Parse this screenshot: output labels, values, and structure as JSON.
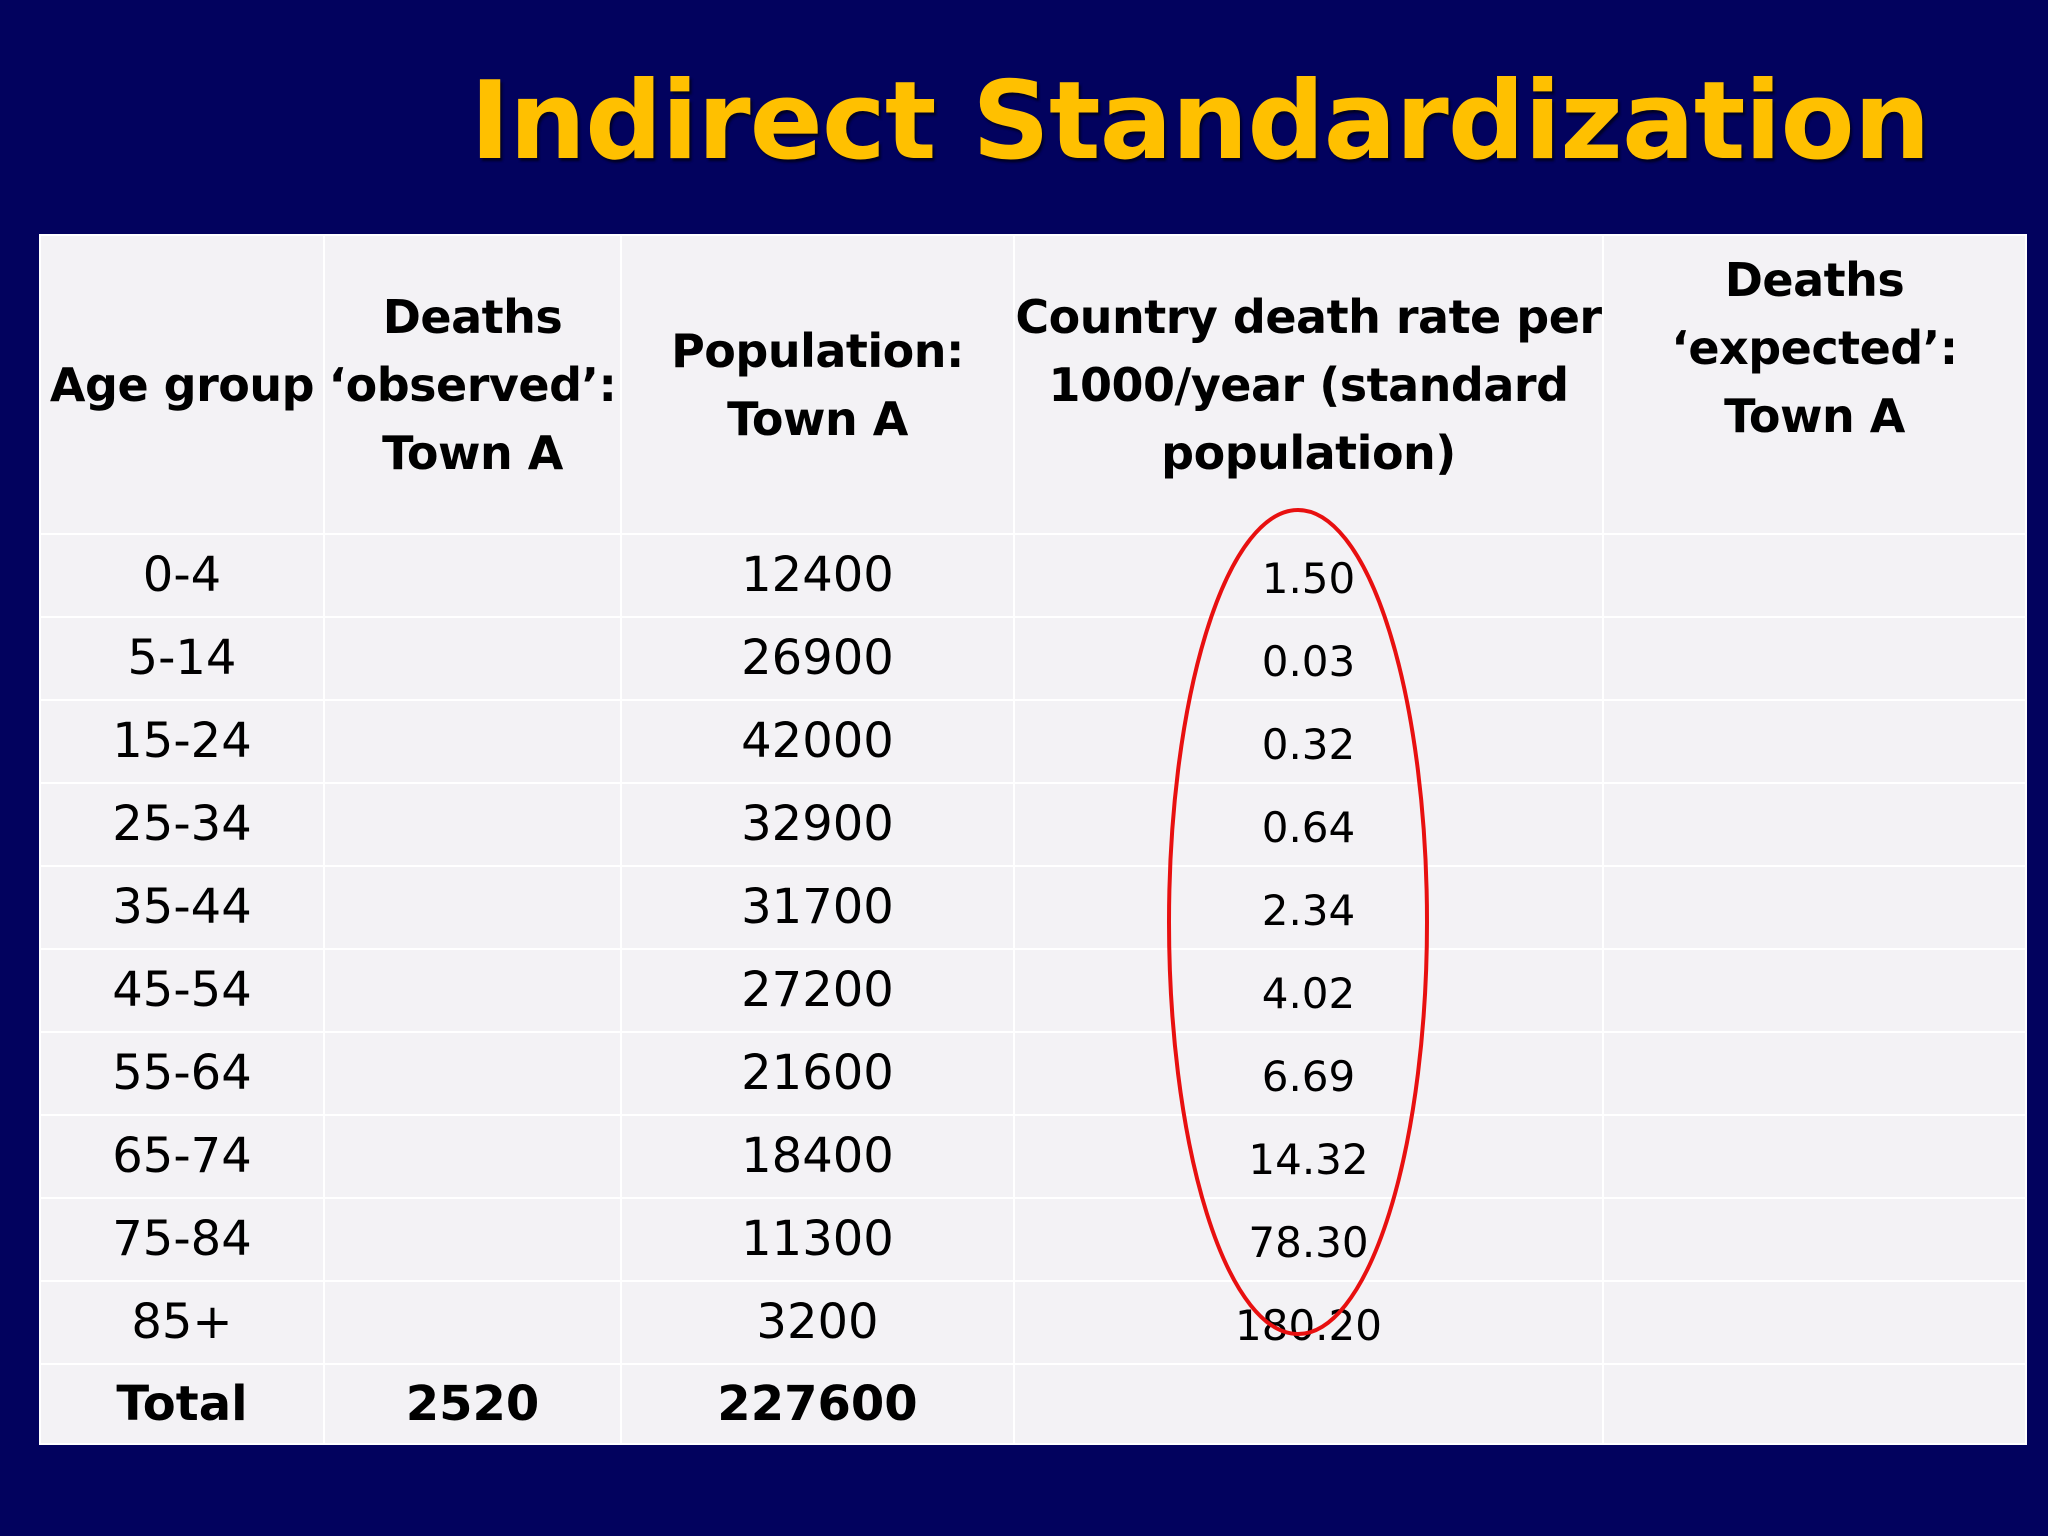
{
  "title": "Indirect Standardization",
  "table": {
    "headers": [
      "Age group",
      "Deaths ‘observed’: Town A",
      "Population: Town A",
      "Country death rate per 1000/year (standard population)",
      "Deaths ‘expected’: Town A"
    ],
    "rows": [
      {
        "age": "0-4",
        "observed": "",
        "population": "12400",
        "rate": "1.50",
        "expected": ""
      },
      {
        "age": "5-14",
        "observed": "",
        "population": "26900",
        "rate": "0.03",
        "expected": ""
      },
      {
        "age": "15-24",
        "observed": "",
        "population": "42000",
        "rate": "0.32",
        "expected": ""
      },
      {
        "age": "25-34",
        "observed": "",
        "population": "32900",
        "rate": "0.64",
        "expected": ""
      },
      {
        "age": "35-44",
        "observed": "",
        "population": "31700",
        "rate": "2.34",
        "expected": ""
      },
      {
        "age": "45-54",
        "observed": "",
        "population": "27200",
        "rate": "4.02",
        "expected": ""
      },
      {
        "age": "55-64",
        "observed": "",
        "population": "21600",
        "rate": "6.69",
        "expected": ""
      },
      {
        "age": "65-74",
        "observed": "",
        "population": "18400",
        "rate": "14.32",
        "expected": ""
      },
      {
        "age": "75-84",
        "observed": "",
        "population": "11300",
        "rate": "78.30",
        "expected": ""
      },
      {
        "age": "85+",
        "observed": "",
        "population": "3200",
        "rate": "180.20",
        "expected": ""
      }
    ],
    "total": {
      "label": "Total",
      "observed": "2520",
      "population": "227600",
      "rate": "",
      "expected": ""
    }
  },
  "colors": {
    "background": "#02025e",
    "title": "#ffc000",
    "table_fill": "#f3f2f5",
    "highlight_ellipse": "#e81010"
  }
}
